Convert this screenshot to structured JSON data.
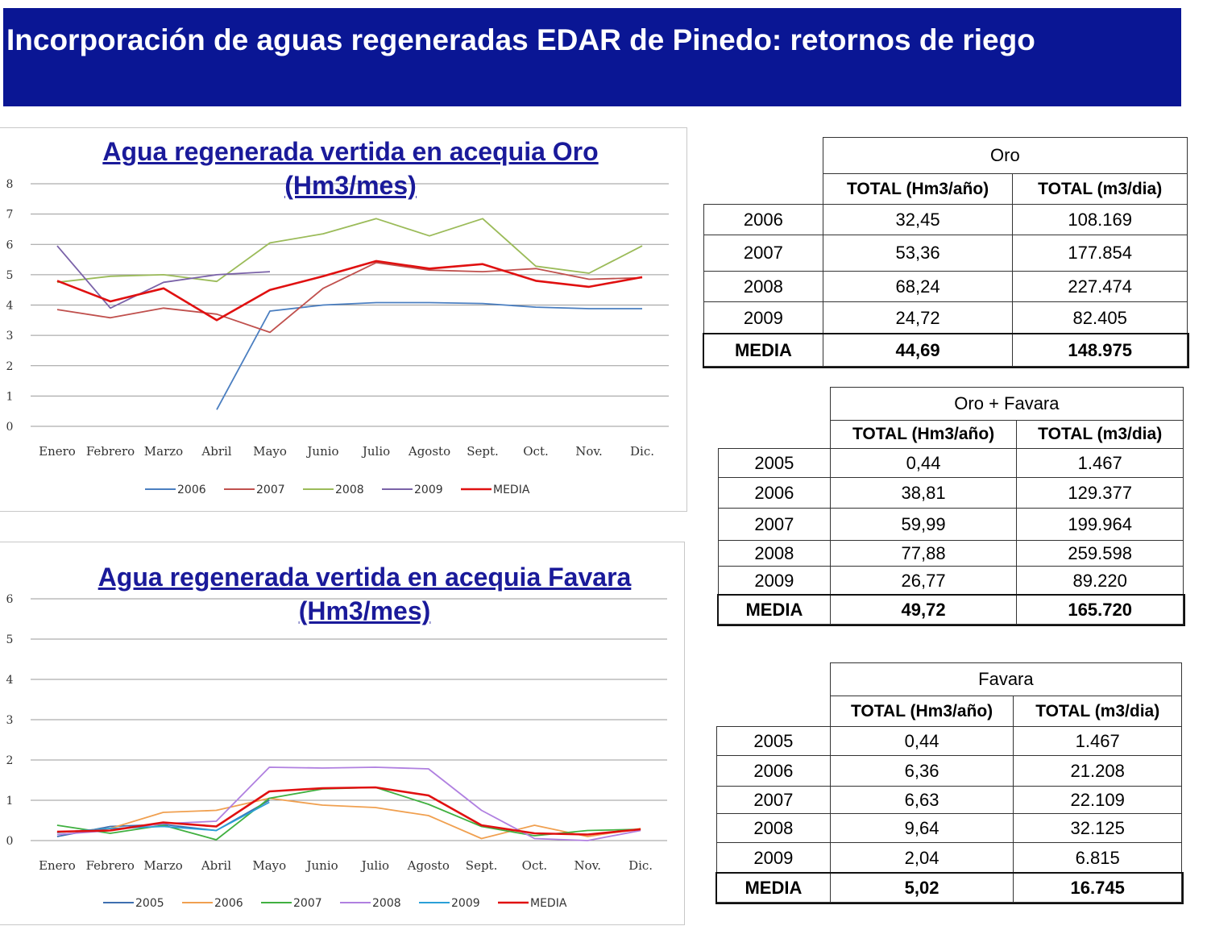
{
  "banner": {
    "title": "Incorporación de aguas regeneradas EDAR de Pinedo: retornos de riego"
  },
  "colors": {
    "banner": "#0a1694",
    "title_text": "#1a1a9a",
    "2005": "#3f6fb0",
    "2006_oro": "#4a7ec0",
    "2006_fav": "#f0a050",
    "2007_oro": "#c0504d",
    "2007_fav": "#40b040",
    "2008_oro": "#9bbb59",
    "2008_fav": "#b080e0",
    "2009_oro": "#7a62a8",
    "2009_fav": "#2aa0d8",
    "MEDIA": "#e01010"
  },
  "chart_data": [
    {
      "type": "line",
      "title": "Agua regenerada vertida en acequia Oro (Hm3/mes)",
      "xlabel": "",
      "ylabel": "",
      "categories": [
        "Enero",
        "Febrero",
        "Marzo",
        "Abril",
        "Mayo",
        "Junio",
        "Julio",
        "Agosto",
        "Sept.",
        "Oct.",
        "Nov.",
        "Dic."
      ],
      "ylim": [
        0,
        8
      ],
      "yticks": [
        "0",
        "1",
        "2",
        "3",
        "4",
        "5",
        "6",
        "7",
        "8"
      ],
      "grid": true,
      "legend_position": "bottom",
      "series": [
        {
          "name": "2006",
          "color": "#4a7ec0",
          "values": [
            null,
            null,
            null,
            0.55,
            3.8,
            4.0,
            4.08,
            4.08,
            4.05,
            3.93,
            3.88,
            3.88
          ]
        },
        {
          "name": "2007",
          "color": "#c0504d",
          "values": [
            3.85,
            3.58,
            3.9,
            3.7,
            3.1,
            4.55,
            5.4,
            5.15,
            5.1,
            5.2,
            4.85,
            4.9
          ]
        },
        {
          "name": "2008",
          "color": "#9bbb59",
          "values": [
            4.75,
            4.95,
            5.0,
            4.78,
            6.05,
            6.35,
            6.85,
            6.28,
            6.85,
            5.28,
            5.05,
            5.95
          ]
        },
        {
          "name": "2009",
          "color": "#7a62a8",
          "values": [
            5.95,
            3.9,
            4.75,
            5.0,
            5.1,
            null,
            null,
            null,
            null,
            null,
            null,
            null
          ]
        },
        {
          "name": "MEDIA",
          "color": "#e01010",
          "values": [
            4.8,
            4.12,
            4.55,
            3.5,
            4.5,
            4.95,
            5.45,
            5.2,
            5.35,
            4.8,
            4.6,
            4.92
          ]
        }
      ]
    },
    {
      "type": "line",
      "title": "Agua regenerada vertida en acequia Favara (Hm3/mes)",
      "xlabel": "",
      "ylabel": "",
      "categories": [
        "Enero",
        "Febrero",
        "Marzo",
        "Abril",
        "Mayo",
        "Junio",
        "Julio",
        "Agosto",
        "Sept.",
        "Oct.",
        "Nov.",
        "Dic."
      ],
      "ylim": [
        0,
        6
      ],
      "yticks": [
        "0",
        "1",
        "2",
        "3",
        "4",
        "5",
        "6"
      ],
      "grid": true,
      "legend_position": "bottom",
      "series": [
        {
          "name": "2005",
          "color": "#3f6fb0",
          "values": [
            0.1,
            0.35,
            0.4,
            0.25,
            1.0,
            null,
            null,
            null,
            null,
            null,
            null,
            null
          ]
        },
        {
          "name": "2006",
          "color": "#f0a050",
          "values": [
            0.2,
            0.3,
            0.7,
            0.75,
            1.05,
            0.88,
            0.82,
            0.62,
            0.05,
            0.38,
            0.1,
            0.3
          ]
        },
        {
          "name": "2007",
          "color": "#40b040",
          "values": [
            0.38,
            0.18,
            0.38,
            0.02,
            1.05,
            1.28,
            1.32,
            0.9,
            0.35,
            0.12,
            0.25,
            0.28
          ]
        },
        {
          "name": "2008",
          "color": "#b080e0",
          "values": [
            0.15,
            0.25,
            0.42,
            0.48,
            1.82,
            1.8,
            1.82,
            1.78,
            0.75,
            0.05,
            0.0,
            0.25
          ]
        },
        {
          "name": "2009",
          "color": "#2aa0d8",
          "values": [
            0.2,
            0.3,
            0.35,
            0.25,
            0.95,
            null,
            null,
            null,
            null,
            null,
            null,
            null
          ]
        },
        {
          "name": "MEDIA",
          "color": "#e01010",
          "values": [
            0.22,
            0.25,
            0.45,
            0.35,
            1.22,
            1.3,
            1.32,
            1.12,
            0.38,
            0.18,
            0.15,
            0.28
          ]
        }
      ]
    }
  ],
  "tables": [
    {
      "title": "Oro",
      "headers": [
        "TOTAL (Hm3/año)",
        "TOTAL (m3/dia)"
      ],
      "rows": [
        {
          "year": "2006",
          "hm3": "32,45",
          "m3": "108.169"
        },
        {
          "year": "2007",
          "hm3": "53,36",
          "m3": "177.854"
        },
        {
          "year": "2008",
          "hm3": "68,24",
          "m3": "227.474"
        },
        {
          "year": "2009",
          "hm3": "24,72",
          "m3": "82.405"
        }
      ],
      "media": {
        "label": "MEDIA",
        "hm3": "44,69",
        "m3": "148.975"
      }
    },
    {
      "title": "Oro + Favara",
      "headers": [
        "TOTAL (Hm3/año)",
        "TOTAL (m3/dia)"
      ],
      "rows": [
        {
          "year": "2005",
          "hm3": "0,44",
          "m3": "1.467"
        },
        {
          "year": "2006",
          "hm3": "38,81",
          "m3": "129.377"
        },
        {
          "year": "2007",
          "hm3": "59,99",
          "m3": "199.964"
        },
        {
          "year": "2008",
          "hm3": "77,88",
          "m3": "259.598"
        },
        {
          "year": "2009",
          "hm3": "26,77",
          "m3": "89.220"
        }
      ],
      "media": {
        "label": "MEDIA",
        "hm3": "49,72",
        "m3": "165.720"
      }
    },
    {
      "title": "Favara",
      "headers": [
        "TOTAL (Hm3/año)",
        "TOTAL (m3/dia)"
      ],
      "rows": [
        {
          "year": "2005",
          "hm3": "0,44",
          "m3": "1.467"
        },
        {
          "year": "2006",
          "hm3": "6,36",
          "m3": "21.208"
        },
        {
          "year": "2007",
          "hm3": "6,63",
          "m3": "22.109"
        },
        {
          "year": "2008",
          "hm3": "9,64",
          "m3": "32.125"
        },
        {
          "year": "2009",
          "hm3": "2,04",
          "m3": "6.815"
        }
      ],
      "media": {
        "label": "MEDIA",
        "hm3": "5,02",
        "m3": "16.745"
      }
    }
  ]
}
